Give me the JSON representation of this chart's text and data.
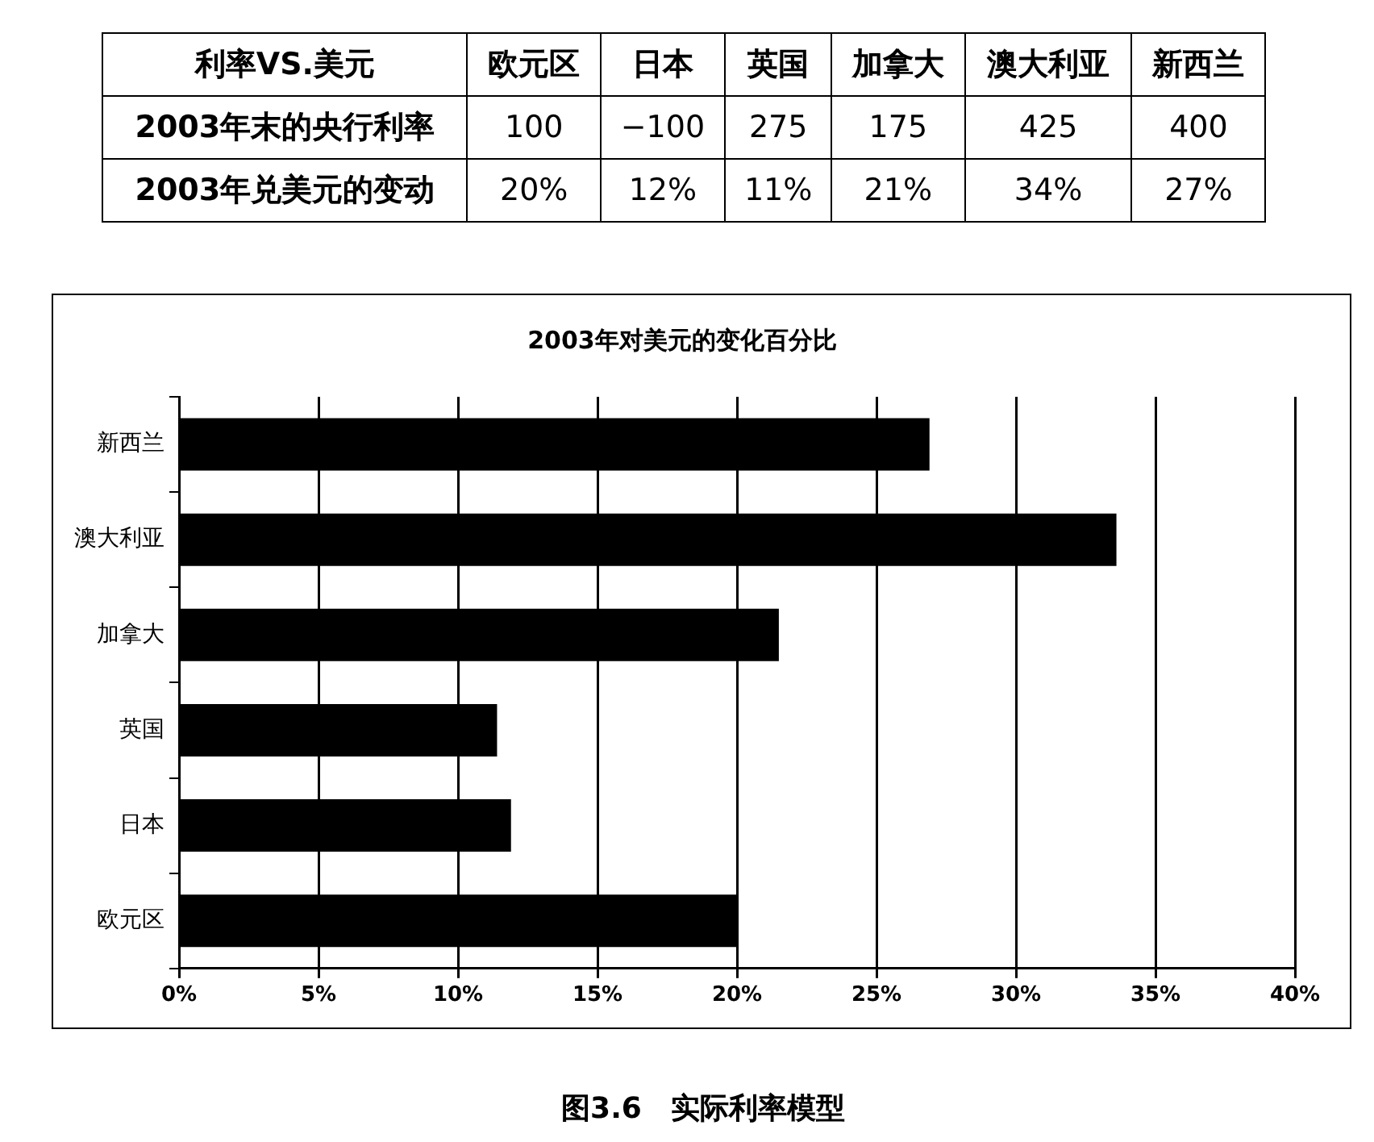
{
  "chart_data": [
    {
      "type": "other",
      "title": "利率VS.美元",
      "categories": [
        "欧元区",
        "日本",
        "英国",
        "加拿大",
        "澳大利亚",
        "新西兰"
      ],
      "series": [
        {
          "name": "2003年末的央行利率",
          "values": [
            100,
            -100,
            275,
            175,
            425,
            400
          ],
          "value_labels": [
            "100",
            "−100",
            "275",
            "175",
            "425",
            "400"
          ]
        },
        {
          "name": "2003年兑美元的变动",
          "values": [
            20,
            12,
            11,
            21,
            34,
            27
          ],
          "value_labels": [
            "20%",
            "12%",
            "11%",
            "21%",
            "34%",
            "27%"
          ]
        }
      ]
    },
    {
      "type": "bar",
      "orientation": "horizontal",
      "title": "2003年对美元的变化百分比",
      "categories": [
        "新西兰",
        "澳大利亚",
        "加拿大",
        "英国",
        "日本",
        "欧元区"
      ],
      "values": [
        26.9,
        33.6,
        21.5,
        11.4,
        11.9,
        20.0
      ],
      "color": "#000000",
      "xlim": [
        0,
        40
      ],
      "xticks": [
        {
          "value": 0,
          "label": "0%"
        },
        {
          "value": 5,
          "label": "5%"
        },
        {
          "value": 10,
          "label": "10%"
        },
        {
          "value": 15,
          "label": "15%"
        },
        {
          "value": 20,
          "label": "20%"
        },
        {
          "value": 25,
          "label": "25%"
        },
        {
          "value": 30,
          "label": "30%"
        },
        {
          "value": 35,
          "label": "35%"
        },
        {
          "value": 40,
          "label": "40%"
        }
      ],
      "grid": "x",
      "legend": false,
      "annotations": [
        "图3.6　实际利率模型"
      ]
    }
  ]
}
